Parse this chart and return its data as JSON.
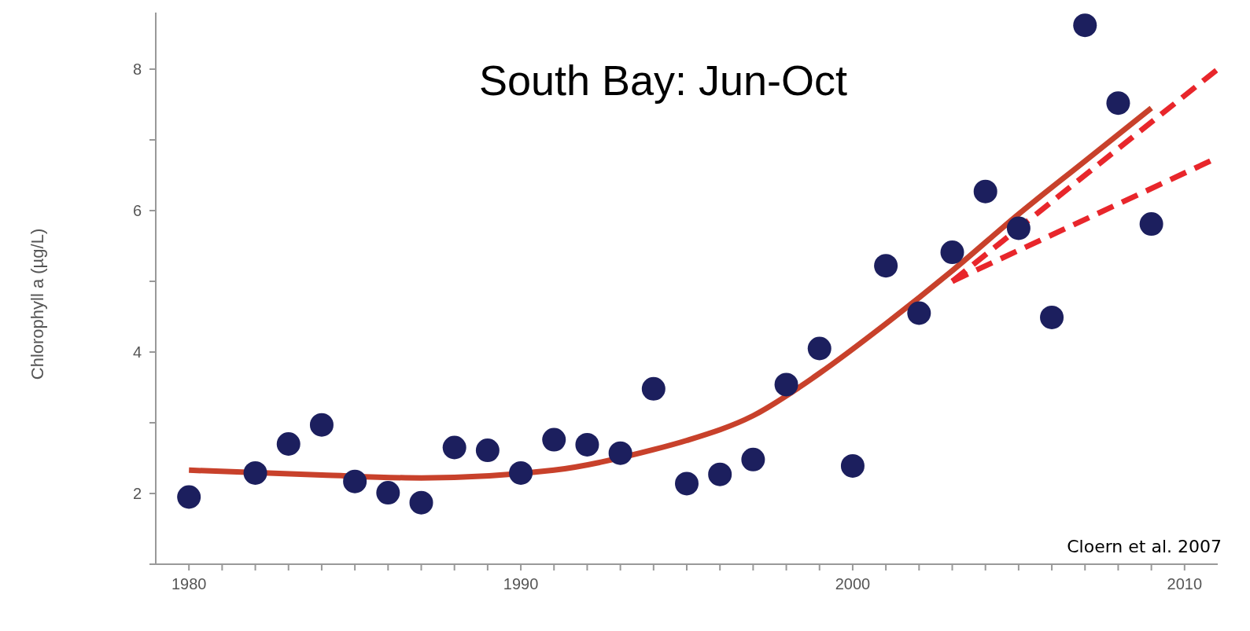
{
  "chart_data": {
    "type": "scatter",
    "title": "South Bay: Jun-Oct",
    "ylabel": "Chlorophyll a (µg/L)",
    "annotations": [
      "Cloern et al. 2007"
    ],
    "x": [
      1980,
      1982,
      1983,
      1984,
      1985,
      1986,
      1987,
      1988,
      1989,
      1990,
      1991,
      1992,
      1993,
      1994,
      1995,
      1996,
      1997,
      1998,
      1999,
      2000,
      2001,
      2002,
      2003,
      2004,
      2005,
      2006,
      2007,
      2008,
      2009
    ],
    "series": [
      {
        "color": "#1c1f5e",
        "marker": "circle",
        "values": [
          1.95,
          2.29,
          2.7,
          2.97,
          2.17,
          2.01,
          1.87,
          2.65,
          2.61,
          2.29,
          2.76,
          2.69,
          2.57,
          3.48,
          2.14,
          2.27,
          2.48,
          3.54,
          4.05,
          2.39,
          5.22,
          4.55,
          5.41,
          6.27,
          5.75,
          4.49,
          8.62,
          7.52,
          5.81
        ]
      },
      {
        "type": "line",
        "color": "#c8412b",
        "marker": "none",
        "line_style": "solid",
        "x": [
          1980,
          1984,
          1987,
          1991,
          1994,
          1995,
          1997,
          1999,
          2001,
          2003,
          2005,
          2007,
          2009
        ],
        "values": [
          2.33,
          2.26,
          2.22,
          2.33,
          2.62,
          2.75,
          3.1,
          3.7,
          4.4,
          5.15,
          5.95,
          6.7,
          7.45
        ]
      },
      {
        "type": "line",
        "color": "#e8262b",
        "marker": "none",
        "line_style": "dashed",
        "x": [
          2003,
          2011
        ],
        "values": [
          5.0,
          8.0
        ]
      },
      {
        "type": "line",
        "color": "#e8262b",
        "marker": "none",
        "line_style": "dashed",
        "x": [
          2003,
          2011
        ],
        "values": [
          5.0,
          6.75
        ]
      }
    ],
    "xlim": [
      1979,
      2011
    ],
    "ylim": [
      1,
      8.8
    ],
    "xticks": [
      1980,
      {
        "value": 1981,
        "label": null
      },
      {
        "value": 1982,
        "label": null
      },
      {
        "value": 1983,
        "label": null
      },
      {
        "value": 1984,
        "label": null
      },
      {
        "value": 1985,
        "label": null
      },
      {
        "value": 1986,
        "label": null
      },
      {
        "value": 1987,
        "label": null
      },
      {
        "value": 1988,
        "label": null
      },
      {
        "value": 1989,
        "label": null
      },
      1990,
      {
        "value": 1991,
        "label": null
      },
      {
        "value": 1992,
        "label": null
      },
      {
        "value": 1993,
        "label": null
      },
      {
        "value": 1994,
        "label": null
      },
      {
        "value": 1995,
        "label": null
      },
      {
        "value": 1996,
        "label": null
      },
      {
        "value": 1997,
        "label": null
      },
      {
        "value": 1998,
        "label": null
      },
      {
        "value": 1999,
        "label": null
      },
      2000,
      {
        "value": 2001,
        "label": null
      },
      {
        "value": 2002,
        "label": null
      },
      {
        "value": 2003,
        "label": null
      },
      {
        "value": 2004,
        "label": null
      },
      {
        "value": 2005,
        "label": null
      },
      {
        "value": 2006,
        "label": null
      },
      {
        "value": 2007,
        "label": null
      },
      {
        "value": 2008,
        "label": null
      },
      {
        "value": 2009,
        "label": null
      },
      2010
    ],
    "yticks": [
      {
        "value": 1,
        "label": null
      },
      2,
      {
        "value": 3,
        "label": null
      },
      4,
      {
        "value": 5,
        "label": null
      },
      6,
      {
        "value": 7,
        "label": null
      },
      8
    ],
    "grid": false
  }
}
